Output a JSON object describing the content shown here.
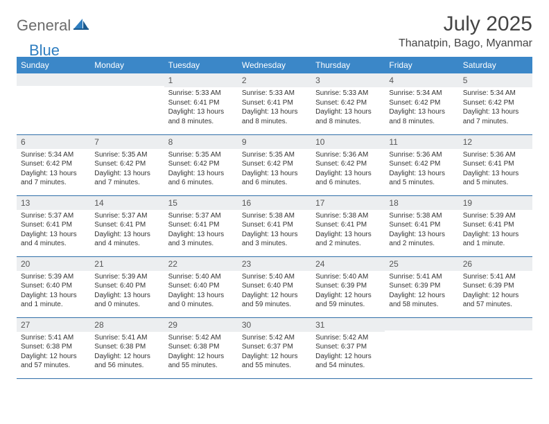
{
  "brand": {
    "general": "General",
    "blue": "Blue"
  },
  "title": "July 2025",
  "location": "Thanatpin, Bago, Myanmar",
  "colors": {
    "header_bg": "#3b87c8",
    "header_text": "#ffffff",
    "daynum_bg": "#eceef0",
    "border": "#2f6ea8",
    "logo_gray": "#6b6b6b",
    "logo_blue": "#2f7ec0"
  },
  "day_labels": [
    "Sunday",
    "Monday",
    "Tuesday",
    "Wednesday",
    "Thursday",
    "Friday",
    "Saturday"
  ],
  "weeks": [
    [
      {
        "n": "",
        "sr": "",
        "ss": "",
        "dl": ""
      },
      {
        "n": "",
        "sr": "",
        "ss": "",
        "dl": ""
      },
      {
        "n": "1",
        "sr": "Sunrise: 5:33 AM",
        "ss": "Sunset: 6:41 PM",
        "dl": "Daylight: 13 hours and 8 minutes."
      },
      {
        "n": "2",
        "sr": "Sunrise: 5:33 AM",
        "ss": "Sunset: 6:41 PM",
        "dl": "Daylight: 13 hours and 8 minutes."
      },
      {
        "n": "3",
        "sr": "Sunrise: 5:33 AM",
        "ss": "Sunset: 6:42 PM",
        "dl": "Daylight: 13 hours and 8 minutes."
      },
      {
        "n": "4",
        "sr": "Sunrise: 5:34 AM",
        "ss": "Sunset: 6:42 PM",
        "dl": "Daylight: 13 hours and 8 minutes."
      },
      {
        "n": "5",
        "sr": "Sunrise: 5:34 AM",
        "ss": "Sunset: 6:42 PM",
        "dl": "Daylight: 13 hours and 7 minutes."
      }
    ],
    [
      {
        "n": "6",
        "sr": "Sunrise: 5:34 AM",
        "ss": "Sunset: 6:42 PM",
        "dl": "Daylight: 13 hours and 7 minutes."
      },
      {
        "n": "7",
        "sr": "Sunrise: 5:35 AM",
        "ss": "Sunset: 6:42 PM",
        "dl": "Daylight: 13 hours and 7 minutes."
      },
      {
        "n": "8",
        "sr": "Sunrise: 5:35 AM",
        "ss": "Sunset: 6:42 PM",
        "dl": "Daylight: 13 hours and 6 minutes."
      },
      {
        "n": "9",
        "sr": "Sunrise: 5:35 AM",
        "ss": "Sunset: 6:42 PM",
        "dl": "Daylight: 13 hours and 6 minutes."
      },
      {
        "n": "10",
        "sr": "Sunrise: 5:36 AM",
        "ss": "Sunset: 6:42 PM",
        "dl": "Daylight: 13 hours and 6 minutes."
      },
      {
        "n": "11",
        "sr": "Sunrise: 5:36 AM",
        "ss": "Sunset: 6:42 PM",
        "dl": "Daylight: 13 hours and 5 minutes."
      },
      {
        "n": "12",
        "sr": "Sunrise: 5:36 AM",
        "ss": "Sunset: 6:41 PM",
        "dl": "Daylight: 13 hours and 5 minutes."
      }
    ],
    [
      {
        "n": "13",
        "sr": "Sunrise: 5:37 AM",
        "ss": "Sunset: 6:41 PM",
        "dl": "Daylight: 13 hours and 4 minutes."
      },
      {
        "n": "14",
        "sr": "Sunrise: 5:37 AM",
        "ss": "Sunset: 6:41 PM",
        "dl": "Daylight: 13 hours and 4 minutes."
      },
      {
        "n": "15",
        "sr": "Sunrise: 5:37 AM",
        "ss": "Sunset: 6:41 PM",
        "dl": "Daylight: 13 hours and 3 minutes."
      },
      {
        "n": "16",
        "sr": "Sunrise: 5:38 AM",
        "ss": "Sunset: 6:41 PM",
        "dl": "Daylight: 13 hours and 3 minutes."
      },
      {
        "n": "17",
        "sr": "Sunrise: 5:38 AM",
        "ss": "Sunset: 6:41 PM",
        "dl": "Daylight: 13 hours and 2 minutes."
      },
      {
        "n": "18",
        "sr": "Sunrise: 5:38 AM",
        "ss": "Sunset: 6:41 PM",
        "dl": "Daylight: 13 hours and 2 minutes."
      },
      {
        "n": "19",
        "sr": "Sunrise: 5:39 AM",
        "ss": "Sunset: 6:41 PM",
        "dl": "Daylight: 13 hours and 1 minute."
      }
    ],
    [
      {
        "n": "20",
        "sr": "Sunrise: 5:39 AM",
        "ss": "Sunset: 6:40 PM",
        "dl": "Daylight: 13 hours and 1 minute."
      },
      {
        "n": "21",
        "sr": "Sunrise: 5:39 AM",
        "ss": "Sunset: 6:40 PM",
        "dl": "Daylight: 13 hours and 0 minutes."
      },
      {
        "n": "22",
        "sr": "Sunrise: 5:40 AM",
        "ss": "Sunset: 6:40 PM",
        "dl": "Daylight: 13 hours and 0 minutes."
      },
      {
        "n": "23",
        "sr": "Sunrise: 5:40 AM",
        "ss": "Sunset: 6:40 PM",
        "dl": "Daylight: 12 hours and 59 minutes."
      },
      {
        "n": "24",
        "sr": "Sunrise: 5:40 AM",
        "ss": "Sunset: 6:39 PM",
        "dl": "Daylight: 12 hours and 59 minutes."
      },
      {
        "n": "25",
        "sr": "Sunrise: 5:41 AM",
        "ss": "Sunset: 6:39 PM",
        "dl": "Daylight: 12 hours and 58 minutes."
      },
      {
        "n": "26",
        "sr": "Sunrise: 5:41 AM",
        "ss": "Sunset: 6:39 PM",
        "dl": "Daylight: 12 hours and 57 minutes."
      }
    ],
    [
      {
        "n": "27",
        "sr": "Sunrise: 5:41 AM",
        "ss": "Sunset: 6:38 PM",
        "dl": "Daylight: 12 hours and 57 minutes."
      },
      {
        "n": "28",
        "sr": "Sunrise: 5:41 AM",
        "ss": "Sunset: 6:38 PM",
        "dl": "Daylight: 12 hours and 56 minutes."
      },
      {
        "n": "29",
        "sr": "Sunrise: 5:42 AM",
        "ss": "Sunset: 6:38 PM",
        "dl": "Daylight: 12 hours and 55 minutes."
      },
      {
        "n": "30",
        "sr": "Sunrise: 5:42 AM",
        "ss": "Sunset: 6:37 PM",
        "dl": "Daylight: 12 hours and 55 minutes."
      },
      {
        "n": "31",
        "sr": "Sunrise: 5:42 AM",
        "ss": "Sunset: 6:37 PM",
        "dl": "Daylight: 12 hours and 54 minutes."
      },
      {
        "n": "",
        "sr": "",
        "ss": "",
        "dl": ""
      },
      {
        "n": "",
        "sr": "",
        "ss": "",
        "dl": ""
      }
    ]
  ]
}
